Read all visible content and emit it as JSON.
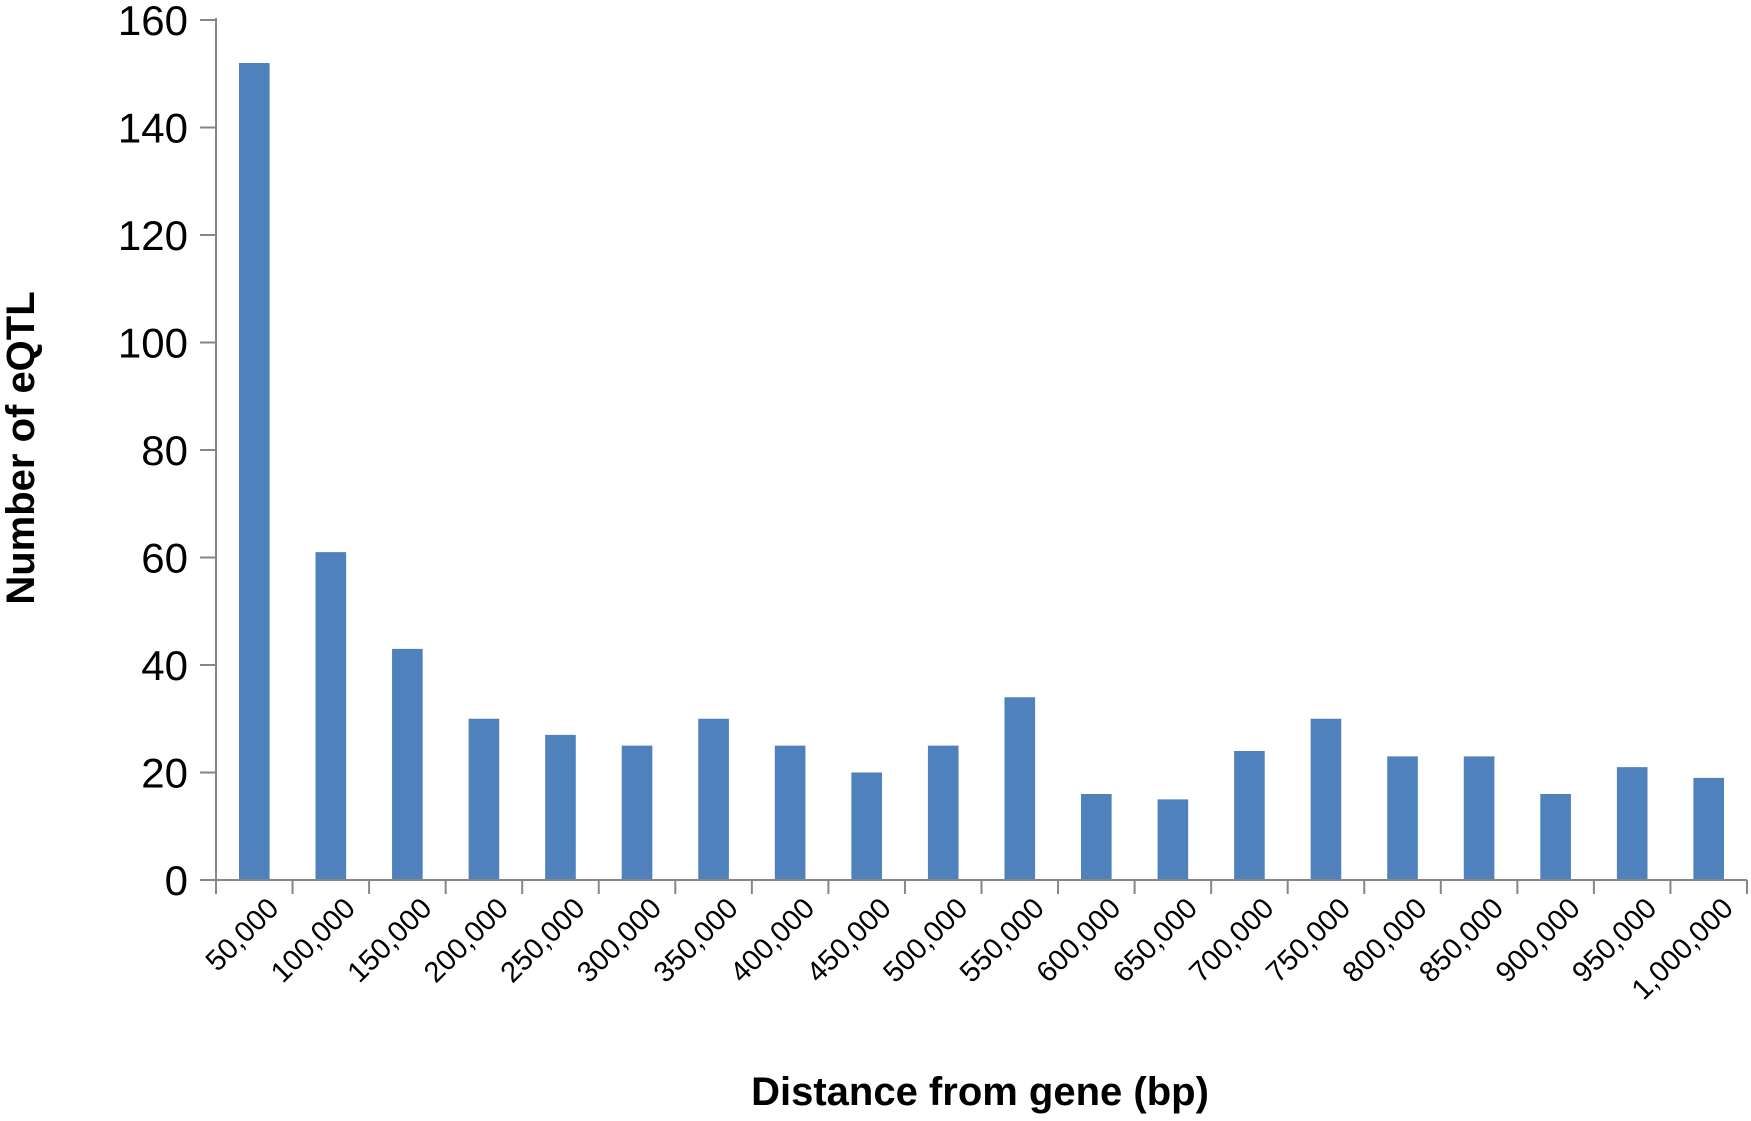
{
  "chart_data": {
    "type": "bar",
    "title": "",
    "xlabel": "Distance from gene (bp)",
    "ylabel": "Number of eQTL",
    "categories": [
      "50,000",
      "100,000",
      "150,000",
      "200,000",
      "250,000",
      "300,000",
      "350,000",
      "400,000",
      "450,000",
      "500,000",
      "550,000",
      "600,000",
      "650,000",
      "700,000",
      "750,000",
      "800,000",
      "850,000",
      "900,000",
      "950,000",
      "1,000,000"
    ],
    "values": [
      152,
      61,
      43,
      30,
      27,
      25,
      30,
      25,
      20,
      25,
      34,
      16,
      15,
      24,
      30,
      23,
      23,
      16,
      21,
      19
    ],
    "ylim": [
      0,
      160
    ],
    "yticks": [
      "0",
      "20",
      "40",
      "60",
      "80",
      "100",
      "120",
      "140",
      "160"
    ],
    "bar_color": "#4F81BD",
    "axis_color": "#868686",
    "grid": false,
    "legend": "none"
  }
}
